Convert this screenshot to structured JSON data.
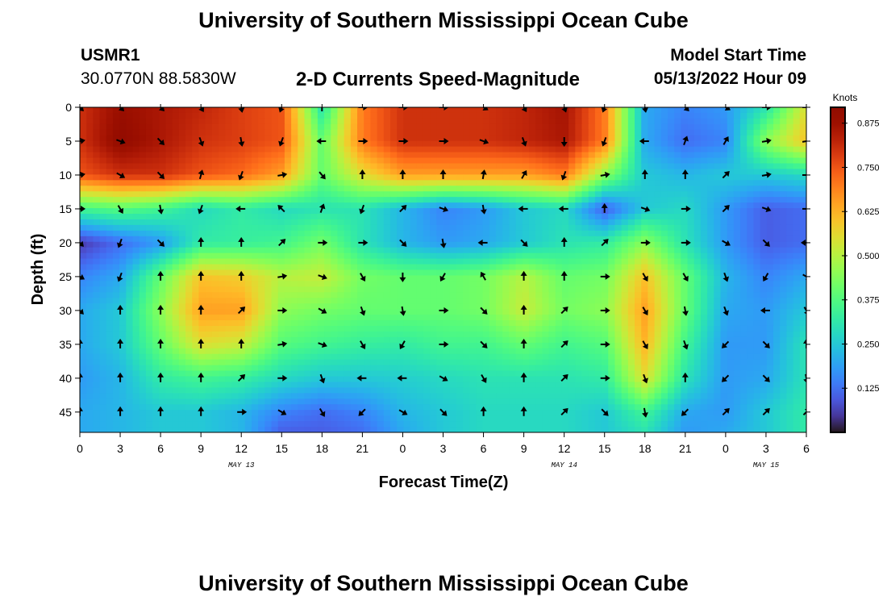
{
  "header": {
    "title": "University of Southern Mississippi Ocean Cube",
    "station_id": "USMR1",
    "coords": "30.0770N  88.5830W",
    "subtitle": "2-D Currents Speed-Magnitude",
    "model_start_label": "Model Start Time",
    "model_start_value": "05/13/2022 Hour 09"
  },
  "footer": {
    "title": "University of Southern Mississippi Ocean Cube"
  },
  "chart_data": {
    "type": "heatmap",
    "title": "2-D Currents Speed-Magnitude",
    "xlabel": "Forecast Time(Z)",
    "ylabel": "Depth (ft)",
    "x_tick_labels": [
      "0",
      "3",
      "6",
      "9",
      "12",
      "15",
      "18",
      "21",
      "0",
      "3",
      "6",
      "9",
      "12",
      "15",
      "18",
      "21",
      "0",
      "3",
      "6"
    ],
    "x_range_hours": [
      0,
      54
    ],
    "date_labels": [
      {
        "label": "MAY 13",
        "hour": 12
      },
      {
        "label": "MAY 14",
        "hour": 36
      },
      {
        "label": "MAY 15",
        "hour": 51
      }
    ],
    "y_ticks": [
      0,
      5,
      10,
      15,
      20,
      25,
      30,
      35,
      40,
      45
    ],
    "y_range": [
      0,
      48
    ],
    "y_inverted": true,
    "colorbar": {
      "label": "Knots",
      "ticks": [
        "0.875",
        "0.750",
        "0.625",
        "0.500",
        "0.375",
        "0.250",
        "0.125"
      ],
      "range": [
        0,
        0.92
      ],
      "colormap": "turbo"
    },
    "speed_field_knots": {
      "x_hours": [
        0,
        3,
        6,
        9,
        12,
        15,
        18,
        21,
        24,
        27,
        30,
        33,
        36,
        39,
        42,
        45,
        48,
        51,
        54
      ],
      "depth_ft": [
        0,
        5,
        10,
        15,
        20,
        25,
        30,
        35,
        40,
        45,
        48
      ],
      "values": [
        [
          0.8,
          0.88,
          0.85,
          0.82,
          0.78,
          0.75,
          0.3,
          0.7,
          0.8,
          0.8,
          0.8,
          0.82,
          0.86,
          0.7,
          0.2,
          0.15,
          0.18,
          0.3,
          0.55
        ],
        [
          0.8,
          0.9,
          0.85,
          0.8,
          0.78,
          0.75,
          0.4,
          0.7,
          0.8,
          0.8,
          0.8,
          0.82,
          0.85,
          0.7,
          0.2,
          0.12,
          0.15,
          0.45,
          0.6
        ],
        [
          0.75,
          0.8,
          0.8,
          0.75,
          0.72,
          0.65,
          0.4,
          0.55,
          0.65,
          0.65,
          0.65,
          0.65,
          0.7,
          0.45,
          0.25,
          0.22,
          0.25,
          0.25,
          0.28
        ],
        [
          0.35,
          0.38,
          0.35,
          0.28,
          0.32,
          0.28,
          0.3,
          0.3,
          0.22,
          0.15,
          0.18,
          0.25,
          0.28,
          0.1,
          0.25,
          0.28,
          0.18,
          0.1,
          0.12
        ],
        [
          0.05,
          0.12,
          0.18,
          0.32,
          0.33,
          0.35,
          0.42,
          0.3,
          0.22,
          0.18,
          0.2,
          0.25,
          0.3,
          0.32,
          0.45,
          0.3,
          0.18,
          0.1,
          0.12
        ],
        [
          0.15,
          0.2,
          0.4,
          0.6,
          0.58,
          0.5,
          0.52,
          0.42,
          0.4,
          0.4,
          0.42,
          0.5,
          0.4,
          0.42,
          0.6,
          0.4,
          0.22,
          0.15,
          0.2
        ],
        [
          0.2,
          0.25,
          0.45,
          0.65,
          0.65,
          0.45,
          0.42,
          0.4,
          0.4,
          0.4,
          0.42,
          0.52,
          0.42,
          0.45,
          0.65,
          0.4,
          0.2,
          0.18,
          0.25
        ],
        [
          0.2,
          0.25,
          0.4,
          0.55,
          0.52,
          0.38,
          0.35,
          0.33,
          0.32,
          0.35,
          0.35,
          0.4,
          0.35,
          0.38,
          0.62,
          0.35,
          0.18,
          0.18,
          0.3
        ],
        [
          0.18,
          0.22,
          0.32,
          0.35,
          0.33,
          0.28,
          0.25,
          0.25,
          0.26,
          0.28,
          0.3,
          0.3,
          0.3,
          0.32,
          0.55,
          0.3,
          0.18,
          0.2,
          0.3
        ],
        [
          0.2,
          0.22,
          0.25,
          0.25,
          0.22,
          0.15,
          0.12,
          0.15,
          0.22,
          0.25,
          0.28,
          0.28,
          0.28,
          0.25,
          0.35,
          0.2,
          0.18,
          0.25,
          0.32
        ],
        [
          0.2,
          0.22,
          0.25,
          0.25,
          0.22,
          0.1,
          0.1,
          0.12,
          0.2,
          0.25,
          0.28,
          0.28,
          0.28,
          0.25,
          0.3,
          0.18,
          0.2,
          0.25,
          0.32
        ]
      ]
    },
    "arrows": {
      "x_hours": [
        0,
        3,
        6,
        9,
        12,
        15,
        18,
        21,
        24,
        27,
        30,
        33,
        36,
        39,
        42,
        45,
        48,
        51,
        54
      ],
      "depth_ft": [
        0,
        5,
        10,
        15,
        20,
        25,
        30,
        35,
        40,
        45
      ],
      "direction_deg": [
        [
          135,
          135,
          135,
          150,
          170,
          200,
          0,
          90,
          90,
          90,
          120,
          150,
          160,
          200,
          170,
          135,
          120,
          90,
          90
        ],
        [
          80,
          110,
          135,
          160,
          170,
          200,
          270,
          90,
          90,
          90,
          110,
          160,
          180,
          200,
          270,
          20,
          30,
          80,
          80
        ],
        [
          80,
          120,
          135,
          15,
          200,
          80,
          140,
          0,
          0,
          0,
          10,
          30,
          200,
          80,
          0,
          0,
          45,
          80,
          90
        ],
        [
          90,
          150,
          170,
          200,
          270,
          315,
          20,
          200,
          45,
          110,
          170,
          270,
          270,
          0,
          110,
          90,
          45,
          110,
          90
        ],
        [
          135,
          200,
          135,
          0,
          0,
          45,
          90,
          90,
          135,
          170,
          270,
          135,
          0,
          45,
          90,
          90,
          120,
          135,
          270
        ],
        [
          120,
          200,
          0,
          0,
          0,
          80,
          110,
          150,
          180,
          210,
          330,
          0,
          0,
          90,
          150,
          150,
          160,
          210,
          120
        ],
        [
          135,
          0,
          0,
          0,
          45,
          90,
          120,
          160,
          170,
          90,
          135,
          0,
          45,
          90,
          150,
          170,
          160,
          270,
          150
        ],
        [
          0,
          0,
          0,
          0,
          0,
          80,
          110,
          150,
          210,
          90,
          135,
          0,
          45,
          90,
          150,
          160,
          225,
          135,
          0
        ],
        [
          0,
          0,
          0,
          0,
          45,
          90,
          160,
          270,
          270,
          120,
          150,
          0,
          45,
          90,
          160,
          0,
          225,
          135,
          170
        ],
        [
          0,
          0,
          0,
          0,
          90,
          120,
          150,
          225,
          120,
          135,
          0,
          0,
          45,
          135,
          170,
          225,
          45,
          45,
          45
        ]
      ]
    }
  }
}
